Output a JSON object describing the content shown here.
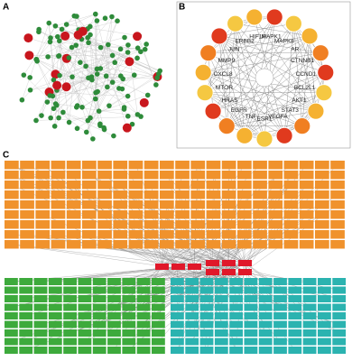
{
  "panels": [
    {
      "label": "A"
    },
    {
      "label": "B",
      "nodes": [
        "MAPK1",
        "MAPK8",
        "AR",
        "CTNNB1",
        "CCND1",
        "BCL2L1",
        "AKT1",
        "STAT3",
        "VEGFA",
        "ESR1",
        "TNF",
        "EGFR",
        "HRAS",
        "MTOR",
        "CXCL8",
        "MMP9",
        "JUN",
        "ERBB2",
        "HIF1A"
      ]
    },
    {
      "label": "C"
    }
  ]
}
